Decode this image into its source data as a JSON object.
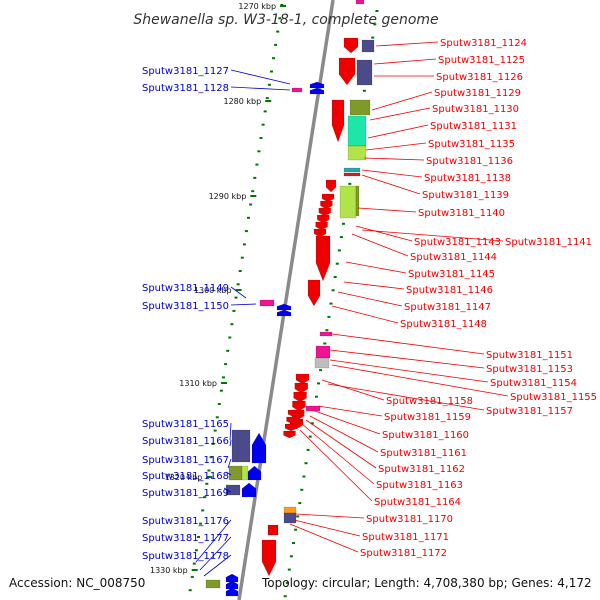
{
  "title": "Shewanella sp. W3-18-1, complete genome",
  "footer": {
    "accession": "Accession: NC_008750",
    "topology": "Topology: circular; Length: 4,708,380 bp; Genes: 4,172"
  },
  "colors": {
    "left_label": "#0000cc",
    "right_label": "#ee0000",
    "backbone": "#777777",
    "tick": "#007700"
  },
  "scale_labels": [
    "1270 kbp",
    "1280 kbp",
    "1290 kbp",
    "1300 kbp",
    "1310 kbp",
    "1320 kbp",
    "1330 kbp"
  ],
  "left_genes": [
    "Sputw3181_1127",
    "Sputw3181_1128",
    "Sputw3181_1149",
    "Sputw3181_1150",
    "Sputw3181_1165",
    "Sputw3181_1166",
    "Sputw3181_1167",
    "Sputw3181_1168",
    "Sputw3181_1169",
    "Sputw3181_1176",
    "Sputw3181_1177",
    "Sputw3181_1178"
  ],
  "right_genes": [
    "Sputw3181_1124",
    "Sputw3181_1125",
    "Sputw3181_1126",
    "Sputw3181_1129",
    "Sputw3181_1130",
    "Sputw3181_1131",
    "Sputw3181_1135",
    "Sputw3181_1136",
    "Sputw3181_1138",
    "Sputw3181_1139",
    "Sputw3181_1140",
    "Sputw3181_1143",
    "Sputw3181_1141",
    "Sputw3181_1144",
    "Sputw3181_1145",
    "Sputw3181_1146",
    "Sputw3181_1147",
    "Sputw3181_1148",
    "Sputw3181_1151",
    "Sputw3181_1153",
    "Sputw3181_1154",
    "Sputw3181_1155",
    "Sputw3181_1158",
    "Sputw3181_1157",
    "Sputw3181_1159",
    "Sputw3181_1160",
    "Sputw3181_1161",
    "Sputw3181_1162",
    "Sputw3181_1163",
    "Sputw3181_1164",
    "Sputw3181_1170",
    "Sputw3181_1171",
    "Sputw3181_1172"
  ]
}
